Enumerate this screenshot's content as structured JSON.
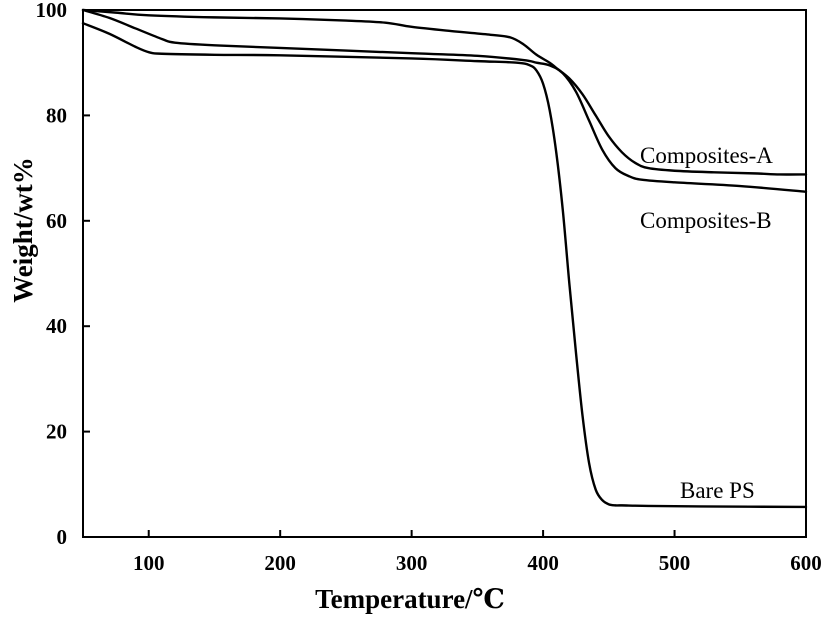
{
  "chart_data": {
    "type": "line",
    "title": "",
    "xlabel": "Temperature/℃",
    "ylabel": "Weight/wt%",
    "xlim": [
      50,
      600
    ],
    "ylim": [
      0,
      100
    ],
    "x_ticks": [
      100,
      200,
      300,
      400,
      500,
      600
    ],
    "y_ticks": [
      0,
      20,
      40,
      60,
      80,
      100
    ],
    "grid": false,
    "legend": "none",
    "series": [
      {
        "name": "Composites-A",
        "x": [
          50,
          75,
          100,
          150,
          200,
          250,
          280,
          300,
          330,
          360,
          375,
          385,
          395,
          405,
          410,
          420,
          430,
          440,
          450,
          460,
          470,
          480,
          500,
          530,
          560,
          580,
          600
        ],
        "y": [
          100,
          99.5,
          99.0,
          98.6,
          98.4,
          98.0,
          97.6,
          96.8,
          96.0,
          95.3,
          94.8,
          93.5,
          91.5,
          90.0,
          89.0,
          87.0,
          84.0,
          80.0,
          76.0,
          73.0,
          71.0,
          70.0,
          69.5,
          69.2,
          69.0,
          68.8,
          68.8
        ]
      },
      {
        "name": "Composites-B",
        "x": [
          50,
          70,
          90,
          110,
          120,
          150,
          200,
          300,
          350,
          385,
          395,
          405,
          415,
          425,
          435,
          445,
          455,
          465,
          475,
          500,
          550,
          600
        ],
        "y": [
          100,
          98.5,
          96.5,
          94.5,
          93.8,
          93.3,
          92.8,
          91.8,
          91.3,
          90.5,
          90.0,
          89.5,
          88.0,
          84.5,
          79.0,
          73.5,
          70.0,
          68.5,
          67.8,
          67.3,
          66.6,
          65.5
        ]
      },
      {
        "name": "Bare PS",
        "x": [
          50,
          70,
          90,
          100,
          110,
          150,
          200,
          300,
          350,
          380,
          390,
          395,
          400,
          405,
          410,
          415,
          420,
          425,
          430,
          435,
          440,
          445,
          450,
          455,
          460,
          480,
          520,
          600
        ],
        "y": [
          97.5,
          95.5,
          93.0,
          92.0,
          91.7,
          91.5,
          91.4,
          90.8,
          90.3,
          90.0,
          89.5,
          88.5,
          86.0,
          81.0,
          73.0,
          62.0,
          48.0,
          35.0,
          23.0,
          14.0,
          9.0,
          7.0,
          6.2,
          6.0,
          6.0,
          5.9,
          5.8,
          5.7
        ]
      }
    ],
    "annotations": [
      {
        "text": "Composites-A",
        "series": "Composites-A"
      },
      {
        "text": "Composites-B",
        "series": "Composites-B"
      },
      {
        "text": "Bare PS",
        "series": "Bare PS"
      }
    ]
  }
}
